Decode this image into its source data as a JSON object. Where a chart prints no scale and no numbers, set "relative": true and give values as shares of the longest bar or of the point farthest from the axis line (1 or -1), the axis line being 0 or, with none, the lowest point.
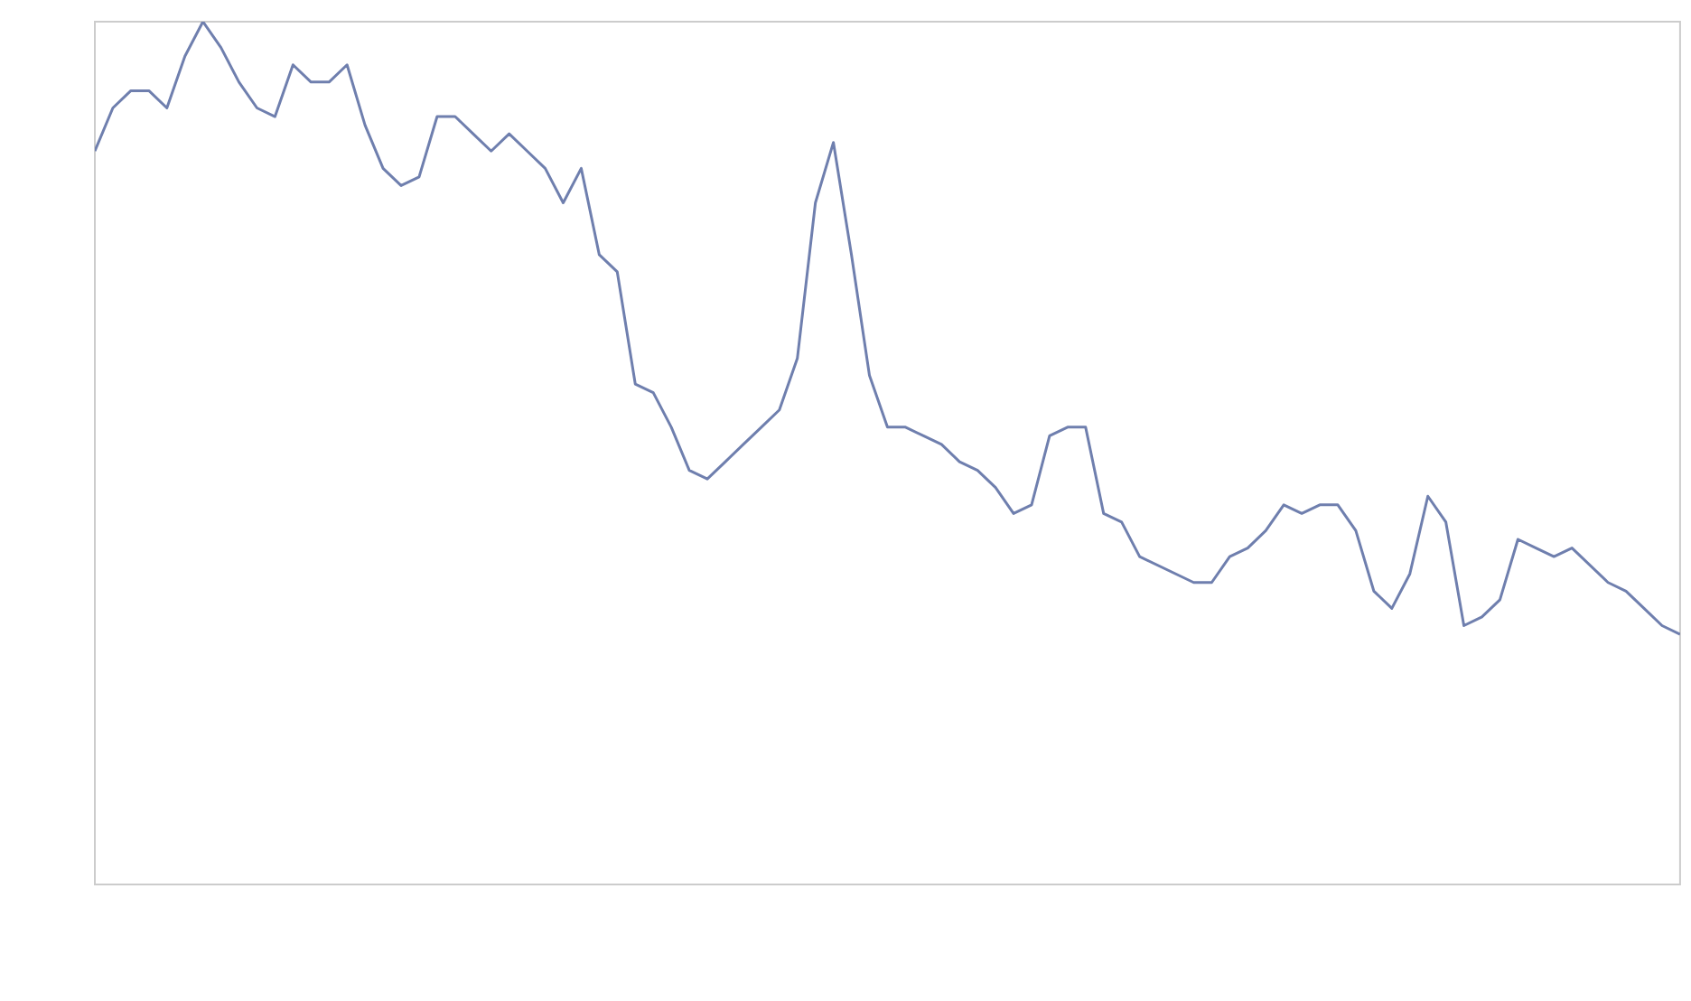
{
  "chart_data": {
    "type": "line",
    "relative": true,
    "color": "#6f7fae",
    "categories": [
      null,
      null,
      null,
      null,
      null,
      null,
      null,
      null,
      null,
      null,
      null,
      null,
      null,
      null,
      null,
      null,
      null,
      null,
      null,
      null,
      null,
      null,
      null,
      null,
      null,
      null,
      null,
      null,
      null,
      null,
      null,
      null,
      null,
      null,
      null,
      null,
      null,
      null,
      null,
      null,
      null,
      null,
      null,
      null,
      null,
      null,
      null,
      null,
      null,
      null,
      null,
      null,
      null,
      null,
      null,
      null,
      null,
      null,
      null,
      null,
      null,
      null,
      null,
      null,
      null,
      null,
      null,
      null,
      null,
      null,
      null,
      null,
      null,
      null,
      null,
      null,
      null,
      null,
      null,
      null,
      null,
      null,
      null,
      null,
      null,
      null,
      null,
      null,
      null
    ],
    "values": [
      0.85,
      0.9,
      0.92,
      0.92,
      0.9,
      0.96,
      1,
      0.97,
      0.93,
      0.9,
      0.89,
      0.95,
      0.93,
      0.93,
      0.95,
      0.88,
      0.83,
      0.81,
      0.82,
      0.89,
      0.89,
      0.87,
      0.85,
      0.87,
      0.85,
      0.83,
      0.79,
      0.83,
      0.73,
      0.71,
      0.58,
      0.57,
      0.53,
      0.48,
      0.47,
      0.49,
      0.51,
      0.53,
      0.55,
      0.61,
      0.79,
      0.86,
      0.73,
      0.59,
      0.53,
      0.53,
      0.52,
      0.51,
      0.49,
      0.48,
      0.46,
      0.43,
      0.44,
      0.52,
      0.53,
      0.53,
      0.43,
      0.42,
      0.38,
      0.37,
      0.36,
      0.35,
      0.35,
      0.38,
      0.39,
      0.41,
      0.44,
      0.43,
      0.44,
      0.44,
      0.41,
      0.34,
      0.32,
      0.36,
      0.45,
      0.42,
      0.3,
      0.31,
      0.33,
      0.4,
      0.39,
      0.38,
      0.39,
      0.37,
      0.35,
      0.34,
      0.32,
      0.3,
      0.29
    ]
  }
}
